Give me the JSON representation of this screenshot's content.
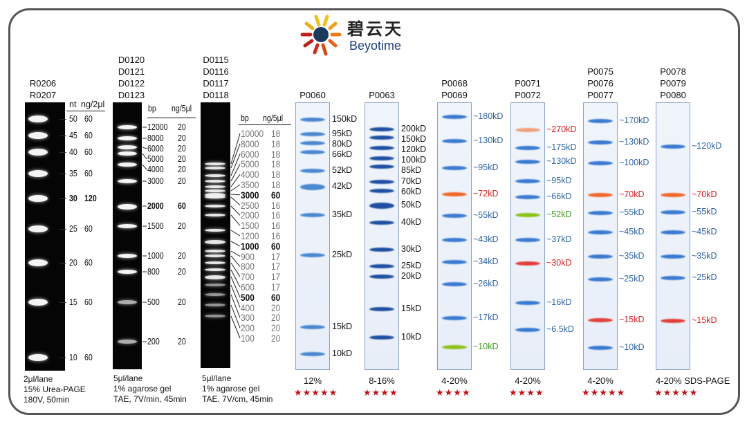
{
  "logo": {
    "cn": "碧云天",
    "en": "Beyotime"
  },
  "colors": {
    "blue": "#2f63a3",
    "red": "#d42020",
    "green": "#3f9a1e",
    "orange": "#ef6a2a"
  },
  "rna": {
    "codes": [
      "R0206",
      "R0207"
    ],
    "h1": "nt",
    "h2": "ng/2μl",
    "rows": [
      [
        "50",
        "60"
      ],
      [
        "45",
        "60"
      ],
      [
        "40",
        "60"
      ],
      [
        "35",
        "60"
      ],
      [
        "30",
        "120"
      ],
      [
        "25",
        "60"
      ],
      [
        "20",
        "60"
      ],
      [
        "15",
        "60"
      ],
      [
        "10",
        "60"
      ]
    ],
    "foot": [
      "2μl/lane",
      "15% Urea-PAGE",
      "180V, 50min"
    ]
  },
  "dna1": {
    "codes": [
      "D0120",
      "D0121",
      "D0122",
      "D0123"
    ],
    "h1": "bp",
    "h2": "ng/5μl",
    "rows": [
      [
        "12000",
        "20"
      ],
      [
        "8000",
        "20"
      ],
      [
        "6000",
        "20"
      ],
      [
        "5000",
        "20"
      ],
      [
        "4000",
        "20"
      ],
      [
        "3000",
        "20"
      ],
      [
        "2000",
        "60"
      ],
      [
        "1500",
        "20"
      ],
      [
        "1000",
        "20"
      ],
      [
        "800",
        "20"
      ],
      [
        "500",
        "20"
      ],
      [
        "200",
        "20"
      ]
    ],
    "foot": [
      "5μl/lane",
      "1% agarose gel",
      "TAE, 7V/min, 45min"
    ]
  },
  "dna2": {
    "codes": [
      "D0115",
      "D0116",
      "D0117",
      "D0118"
    ],
    "h1": "bp",
    "h2": "ng/5μl",
    "rows": [
      [
        "10000",
        "18"
      ],
      [
        "8000",
        "18"
      ],
      [
        "6000",
        "18"
      ],
      [
        "5000",
        "18"
      ],
      [
        "4000",
        "18"
      ],
      [
        "3500",
        "18"
      ],
      [
        "3000",
        "60"
      ],
      [
        "2500",
        "16"
      ],
      [
        "2000",
        "16"
      ],
      [
        "1500",
        "16"
      ],
      [
        "1200",
        "16"
      ],
      [
        "1000",
        "60"
      ],
      [
        "900",
        "17"
      ],
      [
        "800",
        "17"
      ],
      [
        "700",
        "17"
      ],
      [
        "600",
        "17"
      ],
      [
        "500",
        "60"
      ],
      [
        "400",
        "20"
      ],
      [
        "300",
        "20"
      ],
      [
        "200",
        "20"
      ],
      [
        "100",
        "20"
      ]
    ],
    "foot": [
      "5μl/lane",
      "1% agarose gel",
      "TAE, 7V/cm, 45min"
    ]
  },
  "protein": [
    {
      "codes": [
        "P0060"
      ],
      "gel": "12%",
      "stars": "★★★★★",
      "labels": [
        [
          "150kD",
          "k"
        ],
        [
          "95kD",
          "k"
        ],
        [
          "80kD",
          "k"
        ],
        [
          "66kD",
          "k"
        ],
        [
          "52kD",
          "k"
        ],
        [
          "42kD",
          "k"
        ],
        [
          "35kD",
          "k"
        ],
        [
          "25kD",
          "k"
        ],
        [
          "15kD",
          "k"
        ],
        [
          "10kD",
          "k"
        ]
      ]
    },
    {
      "codes": [
        "P0063"
      ],
      "gel": "8-16%",
      "stars": "★★★★",
      "labels": [
        [
          "200kD",
          "k"
        ],
        [
          "150kD",
          "k"
        ],
        [
          "120kD",
          "k"
        ],
        [
          "100kD",
          "k"
        ],
        [
          "85kD",
          "k"
        ],
        [
          "70kD",
          "k"
        ],
        [
          "60kD",
          "k"
        ],
        [
          "50kD",
          "k"
        ],
        [
          "40kD",
          "k"
        ],
        [
          "30kD",
          "k"
        ],
        [
          "25kD",
          "k"
        ],
        [
          "20kD",
          "k"
        ],
        [
          "15kD",
          "k"
        ],
        [
          "10kD",
          "k"
        ]
      ]
    },
    {
      "codes": [
        "P0068",
        "P0069"
      ],
      "gel": "4-20%",
      "stars": "★★★★",
      "labels": [
        [
          "~180kD",
          "b"
        ],
        [
          "~130kD",
          "b"
        ],
        [
          "~95kD",
          "b"
        ],
        [
          "~72kD",
          "r"
        ],
        [
          "~55kD",
          "b"
        ],
        [
          "~43kD",
          "b"
        ],
        [
          "~34kD",
          "b"
        ],
        [
          "~26kD",
          "b"
        ],
        [
          "~17kD",
          "b"
        ],
        [
          "~10kD",
          "g"
        ]
      ]
    },
    {
      "codes": [
        "P0071",
        "P0072"
      ],
      "gel": "4-20%",
      "stars": "★★★★",
      "labels": [
        [
          "~270kD",
          "r"
        ],
        [
          "~175kD",
          "b"
        ],
        [
          "~130kD",
          "b"
        ],
        [
          "~95kD",
          "b"
        ],
        [
          "~66kD",
          "b"
        ],
        [
          "~52kD",
          "g"
        ],
        [
          "~37kD",
          "b"
        ],
        [
          "~30kD",
          "r"
        ],
        [
          "~16kD",
          "b"
        ],
        [
          "~6.5kD",
          "b"
        ]
      ]
    },
    {
      "codes": [
        "P0075",
        "P0076",
        "P0077"
      ],
      "gel": "4-20%",
      "stars": "★★★★★",
      "labels": [
        [
          "~170kD",
          "b"
        ],
        [
          "~130kD",
          "b"
        ],
        [
          "~100kD",
          "b"
        ],
        [
          "~70kD",
          "r"
        ],
        [
          "~55kD",
          "b"
        ],
        [
          "~45kD",
          "b"
        ],
        [
          "~35kD",
          "b"
        ],
        [
          "~25kD",
          "b"
        ],
        [
          "~15kD",
          "r"
        ],
        [
          "~10kD",
          "b"
        ]
      ]
    },
    {
      "codes": [
        "P0078",
        "P0079",
        "P0080"
      ],
      "gel": "4-20% SDS-PAGE",
      "stars": "★★★★★",
      "labels": [
        [
          "~120kD",
          "b"
        ],
        [
          "~70kD",
          "r"
        ],
        [
          "~55kD",
          "b"
        ],
        [
          "~45kD",
          "b"
        ],
        [
          "~35kD",
          "b"
        ],
        [
          "~25kD",
          "b"
        ],
        [
          "~15kD",
          "r"
        ]
      ]
    }
  ]
}
